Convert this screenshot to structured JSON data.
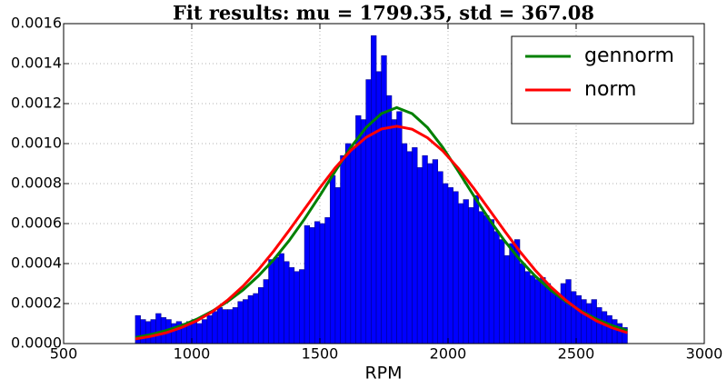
{
  "chart_data": {
    "type": "histogram",
    "title": "Fit results: mu = 1799.35,  std = 367.08",
    "xlabel": "RPM",
    "color": "#0000ff",
    "bins": [
      780,
      800,
      820,
      840,
      860,
      880,
      900,
      920,
      940,
      960,
      980,
      1000,
      1020,
      1040,
      1060,
      1080,
      1100,
      1120,
      1140,
      1160,
      1180,
      1200,
      1220,
      1240,
      1260,
      1280,
      1300,
      1320,
      1340,
      1360,
      1380,
      1400,
      1420,
      1440,
      1460,
      1480,
      1500,
      1520,
      1540,
      1560,
      1580,
      1600,
      1620,
      1640,
      1660,
      1680,
      1700,
      1720,
      1740,
      1760,
      1780,
      1800,
      1820,
      1840,
      1860,
      1880,
      1900,
      1920,
      1940,
      1960,
      1980,
      2000,
      2020,
      2040,
      2060,
      2080,
      2100,
      2120,
      2140,
      2160,
      2180,
      2200,
      2220,
      2240,
      2260,
      2280,
      2300,
      2320,
      2340,
      2360,
      2380,
      2400,
      2420,
      2440,
      2460,
      2480,
      2500,
      2520,
      2540,
      2560,
      2580,
      2600,
      2620,
      2640,
      2660,
      2680,
      2700
    ],
    "values": [
      0.00014,
      0.00012,
      0.00011,
      0.00012,
      0.00015,
      0.00013,
      0.00012,
      0.0001,
      0.00011,
      0.0001,
      0.00011,
      0.00012,
      0.0001,
      0.00012,
      0.00014,
      0.00016,
      0.00018,
      0.00017,
      0.00017,
      0.00018,
      0.00021,
      0.00022,
      0.00024,
      0.00025,
      0.00028,
      0.00032,
      0.00042,
      0.00043,
      0.00045,
      0.00041,
      0.00038,
      0.00036,
      0.00037,
      0.00059,
      0.00058,
      0.00061,
      0.0006,
      0.00063,
      0.00084,
      0.00078,
      0.00094,
      0.001,
      0.00098,
      0.00114,
      0.00112,
      0.00132,
      0.00154,
      0.00136,
      0.00144,
      0.00124,
      0.00112,
      0.00116,
      0.001,
      0.00096,
      0.00098,
      0.00088,
      0.00094,
      0.0009,
      0.00092,
      0.00086,
      0.0008,
      0.00078,
      0.00076,
      0.0007,
      0.00072,
      0.00068,
      0.00074,
      0.00066,
      0.00064,
      0.00062,
      0.00056,
      0.00052,
      0.00044,
      0.0005,
      0.00052,
      0.0004,
      0.00036,
      0.00034,
      0.00032,
      0.00033,
      0.0003,
      0.00026,
      0.00024,
      0.0003,
      0.00032,
      0.00026,
      0.00024,
      0.00022,
      0.0002,
      0.00022,
      0.00018,
      0.00016,
      0.00014,
      0.00012,
      0.0001,
      8e-05
    ],
    "series": [
      {
        "name": "gennorm",
        "color": "#008000",
        "x": [
          780,
          840,
          900,
          960,
          1020,
          1080,
          1140,
          1200,
          1260,
          1320,
          1380,
          1440,
          1500,
          1560,
          1620,
          1680,
          1740,
          1800,
          1860,
          1920,
          1980,
          2040,
          2100,
          2160,
          2220,
          2280,
          2340,
          2400,
          2460,
          2520,
          2580,
          2640,
          2700
        ],
        "values": [
          3e-05,
          4.5e-05,
          6.5e-05,
          9e-05,
          0.000122,
          0.000162,
          0.00021,
          0.000268,
          0.000338,
          0.00042,
          0.000515,
          0.000623,
          0.00074,
          0.000862,
          0.00098,
          0.00108,
          0.00115,
          0.00118,
          0.00115,
          0.00108,
          0.00098,
          0.000862,
          0.00074,
          0.000623,
          0.000515,
          0.00042,
          0.000338,
          0.000268,
          0.00021,
          0.000162,
          0.000122,
          9e-05,
          6.5e-05
        ]
      },
      {
        "name": "norm",
        "color": "#ff0000",
        "x": [
          780,
          840,
          900,
          960,
          1020,
          1080,
          1140,
          1200,
          1260,
          1320,
          1380,
          1440,
          1500,
          1560,
          1620,
          1680,
          1740,
          1800,
          1860,
          1920,
          1980,
          2040,
          2100,
          2160,
          2220,
          2280,
          2340,
          2400,
          2460,
          2520,
          2580,
          2640,
          2700
        ],
        "values": [
          2.3e-05,
          3.6e-05,
          5.4e-05,
          8e-05,
          0.000114,
          0.000159,
          0.000217,
          0.000287,
          0.000369,
          0.000463,
          0.000566,
          0.000673,
          0.000779,
          0.000879,
          0.000965,
          0.001031,
          0.001073,
          0.001087,
          0.001072,
          0.001029,
          0.000963,
          0.000877,
          0.000777,
          0.000671,
          0.000564,
          0.000461,
          0.000367,
          0.000285,
          0.000216,
          0.000158,
          0.000113,
          7.9e-05,
          5.4e-05
        ]
      }
    ],
    "xlim": [
      500,
      3000
    ],
    "xticks": [
      500,
      1000,
      1500,
      2000,
      2500,
      3000
    ],
    "ylim": [
      0,
      0.0016
    ],
    "yticks": [
      {
        "value": 0,
        "label": "0.0000"
      },
      {
        "value": 0.0002,
        "label": "0.0002"
      },
      {
        "value": 0.0004,
        "label": "0.0004"
      },
      {
        "value": 0.0006,
        "label": "0.0006"
      },
      {
        "value": 0.0008,
        "label": "0.0008"
      },
      {
        "value": 0.001,
        "label": "0.0010"
      },
      {
        "value": 0.0012,
        "label": "0.0012"
      },
      {
        "value": 0.0014,
        "label": "0.0014"
      },
      {
        "value": 0.0016,
        "label": "0.0016"
      }
    ],
    "grid": true,
    "legend": "upper right"
  }
}
